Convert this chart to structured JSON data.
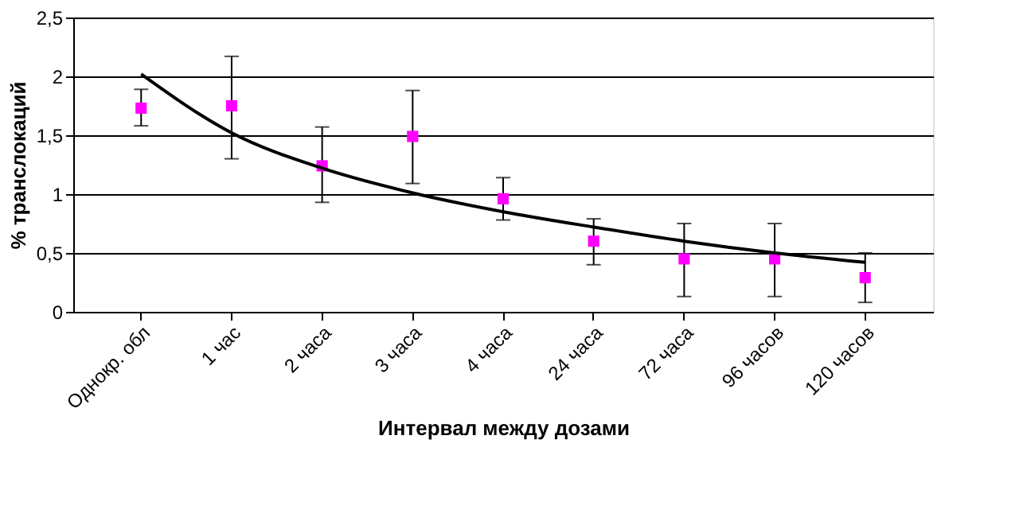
{
  "chart_data": {
    "type": "scatter",
    "xlabel": "Интервал между дозами",
    "ylabel": "% транслокаций",
    "categories": [
      "Однокр. обл",
      "1 час",
      "2 часа",
      "3 часа",
      "4 часа",
      "24 часа",
      "72 часа",
      "96 часов",
      "120 часов"
    ],
    "series": [
      {
        "color": "#ff00ff",
        "marker": "square",
        "values": [
          1.73,
          1.75,
          1.24,
          1.49,
          0.96,
          0.6,
          0.45,
          0.45,
          0.29
        ],
        "errors": [
          [
            1.58,
            1.89
          ],
          [
            1.3,
            2.17
          ],
          [
            0.93,
            1.57
          ],
          [
            1.09,
            1.88
          ],
          [
            0.78,
            1.14
          ],
          [
            0.4,
            0.79
          ],
          [
            0.13,
            0.75
          ],
          [
            0.13,
            0.75
          ],
          [
            0.08,
            0.5
          ]
        ]
      },
      {
        "type": "line",
        "color": "#000000",
        "line_style": "solid",
        "x": [
          "Однокр. обл",
          "1 час",
          "2 часа",
          "3 часа",
          "4 часа",
          "24 часа",
          "72 часа",
          "96 часов",
          "120 часов"
        ],
        "values": [
          2.02,
          1.52,
          1.22,
          1.01,
          0.85,
          0.72,
          0.6,
          0.5,
          0.42
        ]
      }
    ],
    "ylim": [
      0,
      2.5
    ],
    "yticks": [
      {
        "value": 0,
        "label": "0"
      },
      {
        "value": 0.5,
        "label": "0,5"
      },
      {
        "value": 1,
        "label": "1"
      },
      {
        "value": 1.5,
        "label": "1,5"
      },
      {
        "value": 2,
        "label": "2"
      },
      {
        "value": 2.5,
        "label": "2,5"
      }
    ],
    "grid": "y"
  }
}
